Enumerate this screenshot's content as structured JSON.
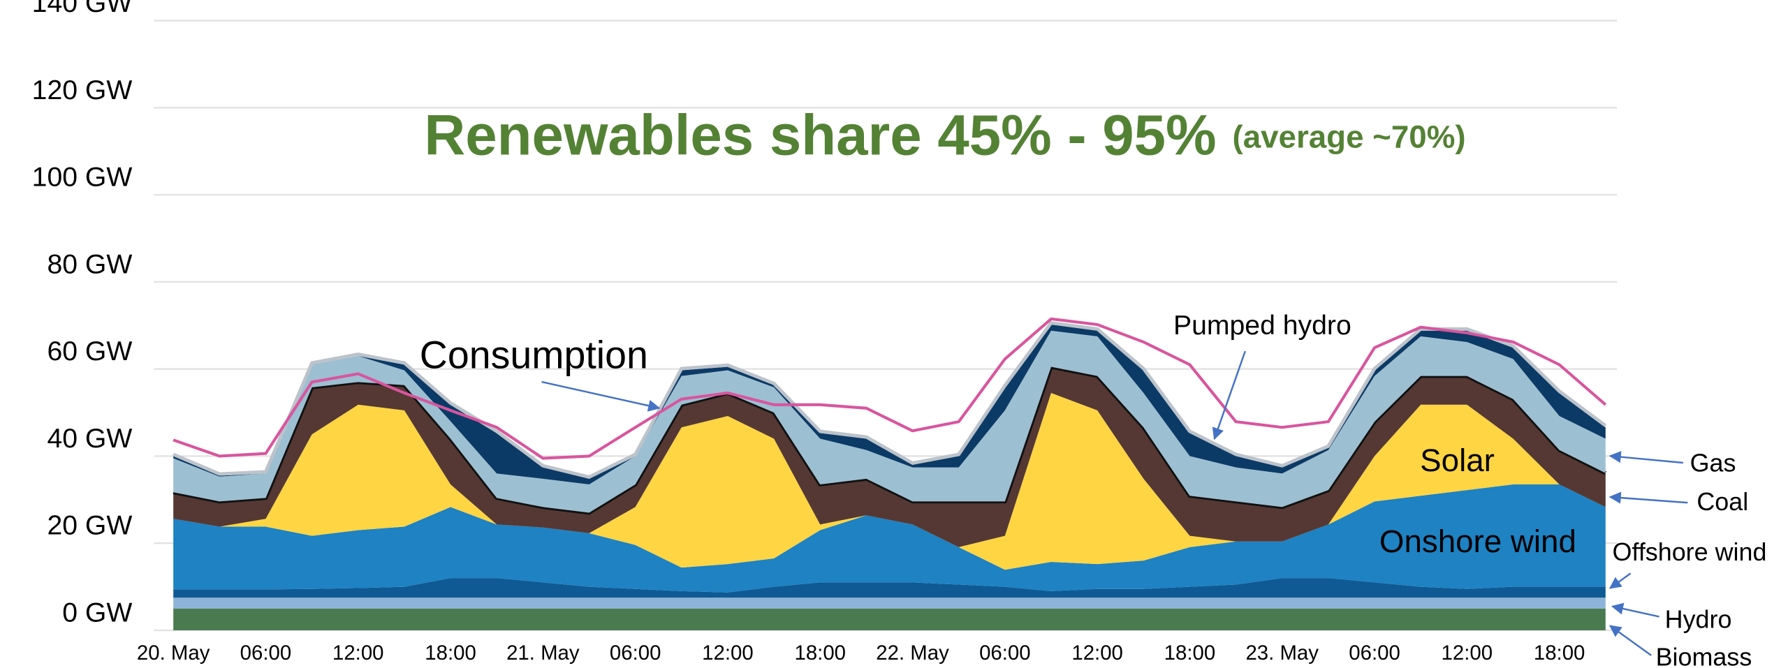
{
  "chart_data": {
    "type": "area",
    "title": "Renewables share 45% - 95%",
    "subtitle": "(average ~70%)",
    "categories": [
      "20. May",
      null,
      "06:00",
      null,
      "12:00",
      null,
      "18:00",
      null,
      "21. May",
      null,
      "06:00",
      null,
      "12:00",
      null,
      "18:00",
      null,
      "22. May",
      null,
      "06:00",
      null,
      "12:00",
      null,
      "18:00",
      null,
      "23. May",
      null,
      "06:00",
      null,
      "12:00",
      null,
      "18:00",
      null
    ],
    "ylim": [
      0,
      140
    ],
    "yticks": [
      {
        "value": 0,
        "label": "0 GW"
      },
      {
        "value": 20,
        "label": "20 GW"
      },
      {
        "value": 40,
        "label": "40 GW"
      },
      {
        "value": 60,
        "label": "60 GW"
      },
      {
        "value": 80,
        "label": "80 GW"
      },
      {
        "value": 100,
        "label": "100 GW"
      },
      {
        "value": 120,
        "label": "120 GW"
      },
      {
        "value": 140,
        "label": "140 GW"
      }
    ],
    "grid": true,
    "series": [
      {
        "name": "Biomass",
        "color": "#4a7a50",
        "values": [
          5,
          5,
          5,
          5,
          5,
          5,
          5,
          5,
          5,
          5,
          5,
          5,
          5,
          5,
          5,
          5,
          5,
          5,
          5,
          5,
          5,
          5,
          5,
          5,
          5,
          5,
          5,
          5,
          5,
          5,
          5,
          5
        ]
      },
      {
        "name": "Hydro",
        "color": "#8db4d8",
        "values": [
          2.5,
          2.5,
          2.5,
          2.5,
          2.5,
          2.5,
          2.5,
          2.5,
          2.5,
          2.5,
          2.5,
          2.5,
          2.5,
          2.5,
          2.5,
          2.5,
          2.5,
          2.5,
          2.5,
          2.5,
          2.5,
          2.5,
          2.5,
          2.5,
          2.5,
          2.5,
          2.5,
          2.5,
          2.5,
          2.5,
          2.5,
          2.5
        ]
      },
      {
        "name": "Offshore wind",
        "color": "#0f5a94",
        "values": [
          1.9,
          1.9,
          1.9,
          2,
          2.2,
          2.5,
          4.5,
          4.5,
          3.5,
          2.5,
          2,
          1.5,
          1.2,
          2.5,
          3.5,
          3.5,
          3.5,
          3,
          2.5,
          1.5,
          2,
          2,
          2.5,
          3,
          4.5,
          4.5,
          3.5,
          2.5,
          2,
          2.5,
          2.5,
          2.5
        ]
      },
      {
        "name": "Onshore wind",
        "color": "#1e82c3",
        "values": [
          16.2,
          14.4,
          14.4,
          12.2,
          13.3,
          13.8,
          16.3,
          12.3,
          12.6,
          12.3,
          10.1,
          5.4,
          6.5,
          6.5,
          12,
          15.4,
          13.3,
          8.6,
          3.9,
          6.7,
          5.7,
          6.5,
          9.1,
          9.9,
          8.4,
          12.3,
          18.6,
          20.9,
          22.7,
          23.5,
          23.5,
          18.3
        ]
      },
      {
        "name": "Solar",
        "color": "#ffd543",
        "values": [
          0,
          0,
          1.8,
          23.3,
          28.8,
          26.7,
          5.2,
          0,
          0,
          0,
          8.7,
          32.2,
          34,
          27.5,
          1.3,
          0,
          0,
          0,
          7.8,
          38.8,
          35.3,
          18.8,
          2.6,
          0,
          0,
          0,
          10.4,
          20.9,
          19.6,
          10.5,
          0,
          0
        ]
      },
      {
        "name": "Coal",
        "color": "#553833",
        "values": [
          6.1,
          5.8,
          4.8,
          10.8,
          5.2,
          5.8,
          10.5,
          6.1,
          4.7,
          4.7,
          5.2,
          5.2,
          5.3,
          6,
          9.2,
          8.4,
          5.3,
          10.5,
          7.9,
          6,
          7.9,
          11.8,
          9.2,
          9.2,
          7.9,
          7.9,
          7.9,
          6.6,
          6.6,
          9.1,
          7.9,
          7.8
        ]
      },
      {
        "name": "Gas",
        "color": "#9dbfd2",
        "values": [
          7.8,
          5.7,
          5.6,
          5.2,
          6,
          3.4,
          4,
          5.6,
          6.5,
          6.5,
          6.5,
          6.6,
          5.2,
          5.8,
          10.5,
          6.6,
          7.8,
          7.8,
          20.9,
          8.3,
          9.1,
          7.9,
          9.1,
          7.8,
          7.7,
          9.2,
          10.5,
          9.1,
          7.8,
          9.2,
          7.8,
          7.9
        ]
      },
      {
        "name": "Pumped hydro",
        "color": "#0b3a66",
        "values": [
          0.5,
          0.2,
          0,
          0,
          0,
          1.3,
          3.8,
          9.3,
          2.6,
          1.3,
          0,
          1.3,
          0.8,
          0.5,
          1.3,
          2.6,
          0.6,
          2.6,
          5.3,
          1.4,
          1.3,
          5.2,
          5.3,
          2.6,
          1.4,
          0.5,
          1.3,
          1.3,
          2.6,
          2.6,
          5.3,
          2.6
        ]
      },
      {
        "name": "Consumption",
        "type": "line",
        "color": "#d8559e",
        "values": [
          43.7,
          40,
          40.6,
          57,
          58.9,
          54.5,
          50.5,
          46.6,
          39.5,
          40,
          46.6,
          53.1,
          54.5,
          51.8,
          51.8,
          51,
          45.8,
          47.9,
          62.3,
          71.5,
          70.2,
          66.2,
          61,
          47.9,
          46.6,
          47.9,
          64.9,
          69.6,
          68.3,
          66.2,
          61,
          51.8
        ]
      }
    ]
  }
}
